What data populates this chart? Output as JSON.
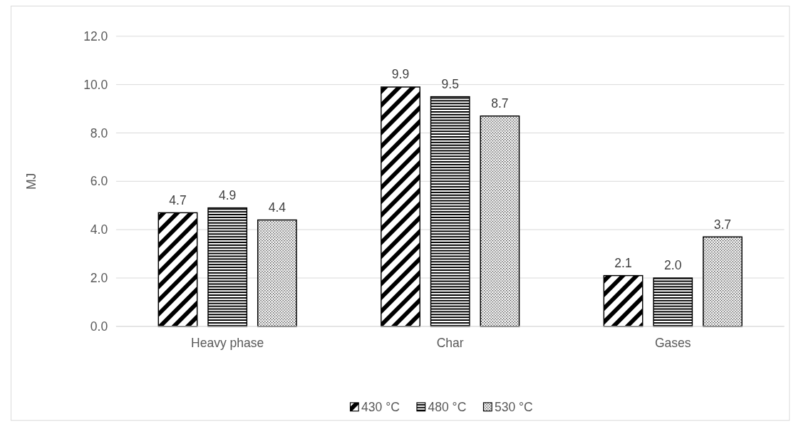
{
  "chart_data": {
    "type": "bar",
    "ylabel": "MJ",
    "categories": [
      "Heavy phase",
      "Char",
      "Gases"
    ],
    "series": [
      {
        "name": "430 °C",
        "color": "#000000",
        "values": [
          4.7,
          9.9,
          2.1
        ],
        "value_labels": [
          "4.7",
          "9.9",
          "2.1"
        ]
      },
      {
        "name": "480 °C",
        "color": "#000000",
        "values": [
          4.9,
          9.5,
          2.0
        ],
        "value_labels": [
          "4.9",
          "9.5",
          "2.0"
        ]
      },
      {
        "name": "530 °C",
        "color": "#000000",
        "values": [
          4.4,
          8.7,
          3.7
        ],
        "value_labels": [
          "4.4",
          "8.7",
          "3.7"
        ]
      }
    ],
    "ylim": [
      0,
      12
    ],
    "yticks": [
      {
        "value": 0,
        "label": "0.0"
      },
      {
        "value": 2,
        "label": "2.0"
      },
      {
        "value": 4,
        "label": "4.0"
      },
      {
        "value": 6,
        "label": "6.0"
      },
      {
        "value": 8,
        "label": "8.0"
      },
      {
        "value": 10,
        "label": "10.0"
      },
      {
        "value": 12,
        "label": "12.0"
      }
    ],
    "grid": "y",
    "legend": "bottom"
  }
}
